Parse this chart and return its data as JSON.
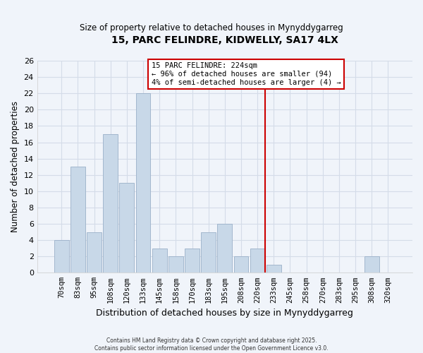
{
  "title": "15, PARC FELINDRE, KIDWELLY, SA17 4LX",
  "subtitle": "Size of property relative to detached houses in Mynyddygarreg",
  "xlabel": "Distribution of detached houses by size in Mynyddygarreg",
  "ylabel": "Number of detached properties",
  "bar_color": "#c8d8e8",
  "bar_edge_color": "#9ab0c8",
  "categories": [
    "70sqm",
    "83sqm",
    "95sqm",
    "108sqm",
    "120sqm",
    "133sqm",
    "145sqm",
    "158sqm",
    "170sqm",
    "183sqm",
    "195sqm",
    "208sqm",
    "220sqm",
    "233sqm",
    "245sqm",
    "258sqm",
    "270sqm",
    "283sqm",
    "295sqm",
    "308sqm",
    "320sqm"
  ],
  "values": [
    4,
    13,
    5,
    17,
    11,
    22,
    3,
    2,
    3,
    5,
    6,
    2,
    3,
    1,
    0,
    0,
    0,
    0,
    0,
    2,
    0
  ],
  "ylim": [
    0,
    26
  ],
  "yticks": [
    0,
    2,
    4,
    6,
    8,
    10,
    12,
    14,
    16,
    18,
    20,
    22,
    24,
    26
  ],
  "vline_color": "#cc0000",
  "annotation_title": "15 PARC FELINDRE: 224sqm",
  "annotation_line1": "← 96% of detached houses are smaller (94)",
  "annotation_line2": "4% of semi-detached houses are larger (4) →",
  "annotation_box_color": "#ffffff",
  "annotation_box_edge": "#cc0000",
  "footer1": "Contains HM Land Registry data © Crown copyright and database right 2025.",
  "footer2": "Contains public sector information licensed under the Open Government Licence v3.0.",
  "grid_color": "#d4dce8",
  "background_color": "#f0f4fa"
}
